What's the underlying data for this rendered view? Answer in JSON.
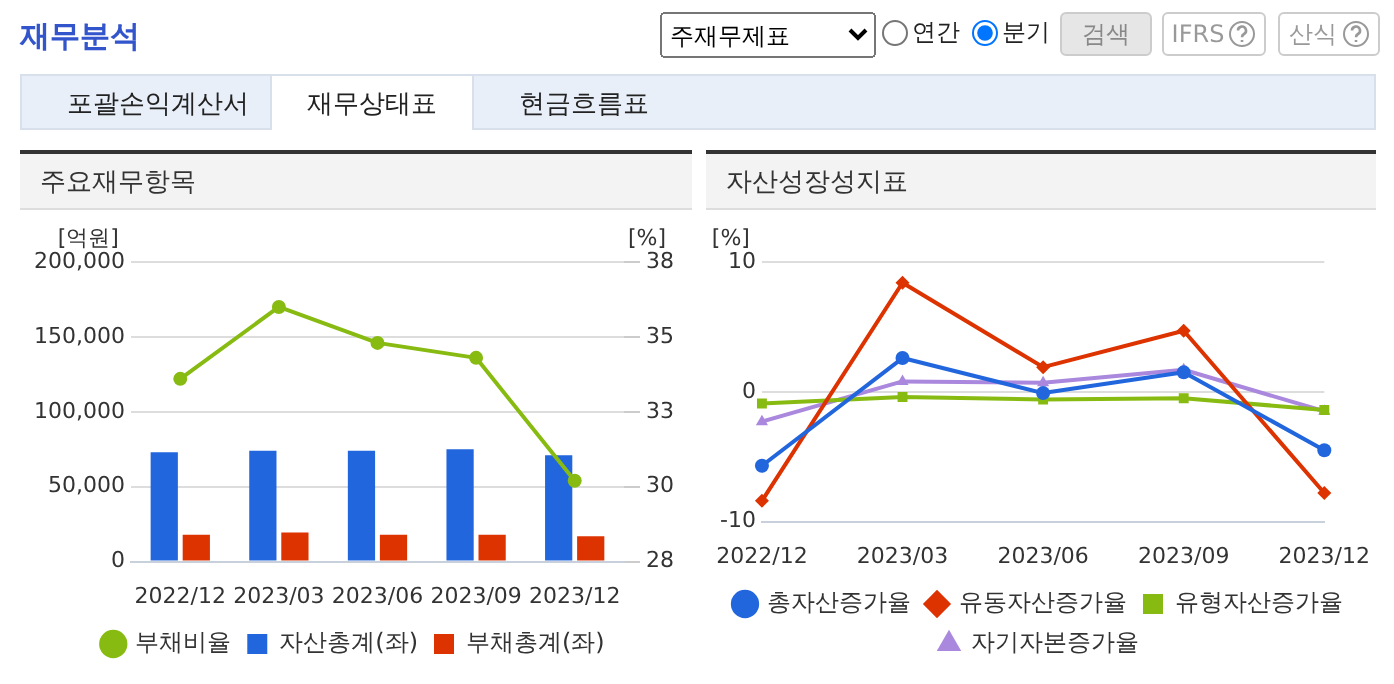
{
  "chart_data": [
    {
      "type": "other",
      "title": "재무분석",
      "annotations": [
        "주재무제표",
        "연간",
        "분기",
        "검색",
        "IFRS",
        "산식",
        "포괄손익계산서",
        "재무상태표",
        "현금흐름표"
      ]
    },
    {
      "type": "bar",
      "title": "주요재무항목",
      "categories": [
        "2022/12",
        "2023/03",
        "2023/06",
        "2023/09",
        "2023/12"
      ],
      "ylabel": "[억원]",
      "y2label": "[%]",
      "series": [
        {
          "name": "자산총계(좌)",
          "color": "#2266dd",
          "values": [
            73000,
            74000,
            74000,
            75000,
            71000
          ]
        },
        {
          "name": "부채총계(좌)",
          "color": "#dd3300",
          "values": [
            18000,
            19500,
            18000,
            18000,
            17000
          ]
        },
        {
          "name": "부채비율",
          "type": "line",
          "axis": "y2",
          "marker": "circle",
          "color": "#88bb11",
          "values": [
            34.1,
            36.5,
            35.3,
            34.8,
            30.7
          ]
        }
      ],
      "ylim": [
        0,
        200000
      ],
      "yticks": [
        {
          "value": 0,
          "label": "0"
        },
        {
          "value": 50000,
          "label": "50,000"
        },
        {
          "value": 100000,
          "label": "100,000"
        },
        {
          "value": 150000,
          "label": "150,000"
        },
        {
          "value": 200000,
          "label": "200,000"
        }
      ],
      "y2lim": [
        28,
        38
      ],
      "y2ticks": [
        28,
        {
          "value": 30.5,
          "label": "30"
        },
        33,
        {
          "value": 35.5,
          "label": "35"
        },
        38
      ],
      "grid": "y",
      "legend": "bottom"
    },
    {
      "type": "line",
      "title": "자산성장성지표",
      "categories": [
        "2022/12",
        "2023/03",
        "2023/06",
        "2023/09",
        "2023/12"
      ],
      "ylabel": "[%]",
      "series": [
        {
          "name": "총자산증가율",
          "color": "#2266dd",
          "marker": "circle",
          "values": [
            -5.7,
            2.6,
            -0.1,
            1.5,
            -4.5
          ]
        },
        {
          "name": "유동자산증가율",
          "color": "#dd3300",
          "marker": "diamond",
          "values": [
            -8.4,
            8.4,
            1.9,
            4.7,
            -7.8
          ]
        },
        {
          "name": "유형자산증가율",
          "color": "#88bb11",
          "marker": "square",
          "values": [
            -0.9,
            -0.4,
            -0.6,
            -0.5,
            -1.4
          ]
        },
        {
          "name": "자기자본증가율",
          "color": "#aa88dd",
          "marker": "triangle",
          "values": [
            -2.3,
            0.8,
            0.7,
            1.7,
            -1.5
          ]
        }
      ],
      "ylim": [
        -10,
        10
      ],
      "yticks": [
        -10,
        0,
        10
      ],
      "grid": "y",
      "legend": "bottom"
    }
  ]
}
